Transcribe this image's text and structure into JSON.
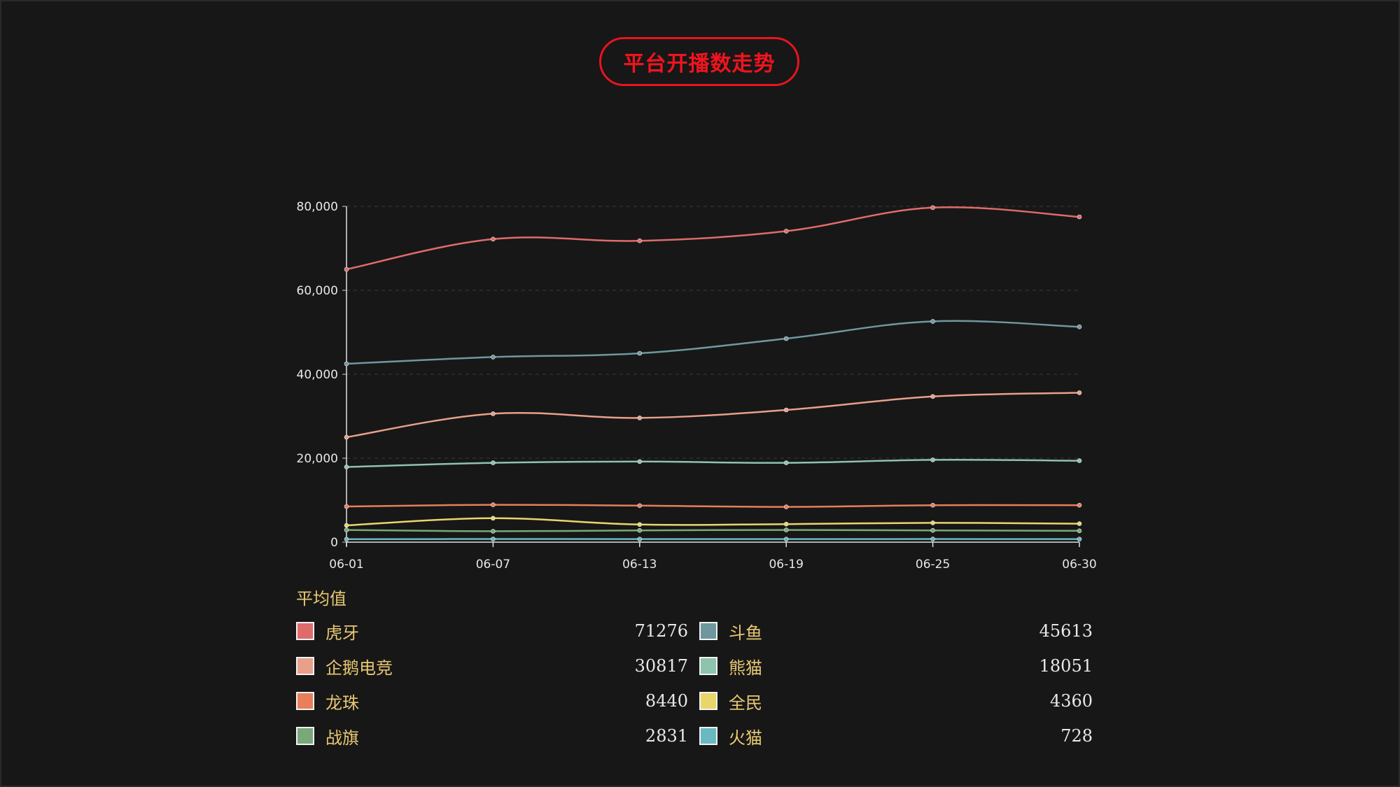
{
  "title": "平台开播数走势",
  "legend_title": "平均值",
  "chart_data": {
    "type": "line",
    "x": [
      "06-01",
      "06-07",
      "06-13",
      "06-19",
      "06-25",
      "06-30"
    ],
    "ylim": [
      0,
      80000
    ],
    "yticks": [
      0,
      20000,
      40000,
      60000,
      80000
    ],
    "ytick_labels": [
      "0",
      "20,000",
      "40,000",
      "60,000",
      "80,000"
    ],
    "grid": true,
    "series": [
      {
        "name": "虎牙",
        "color": "#e06b6b",
        "average": "71276",
        "values": [
          65000,
          72200,
          71800,
          74100,
          79700,
          77500
        ]
      },
      {
        "name": "斗鱼",
        "color": "#6e989e",
        "average": "45613",
        "values": [
          42500,
          44100,
          45000,
          48500,
          52600,
          51300
        ]
      },
      {
        "name": "企鹅电竞",
        "color": "#e8a08a",
        "average": "30817",
        "values": [
          25000,
          30600,
          29600,
          31500,
          34700,
          35600
        ]
      },
      {
        "name": "熊猫",
        "color": "#8ec3ad",
        "average": "18051",
        "values": [
          17900,
          18900,
          19200,
          18900,
          19600,
          19400
        ]
      },
      {
        "name": "龙珠",
        "color": "#e87e5a",
        "average": "8440",
        "values": [
          8500,
          8900,
          8700,
          8400,
          8800,
          8800
        ]
      },
      {
        "name": "全民",
        "color": "#e8d66a",
        "average": "4360",
        "values": [
          4000,
          5700,
          4200,
          4300,
          4600,
          4400
        ]
      },
      {
        "name": "战旗",
        "color": "#79a879",
        "average": "2831",
        "values": [
          2900,
          2600,
          2800,
          2900,
          2800,
          2700
        ]
      },
      {
        "name": "火猫",
        "color": "#6ab8c0",
        "average": "728",
        "values": [
          700,
          750,
          730,
          720,
          740,
          730
        ]
      }
    ]
  }
}
